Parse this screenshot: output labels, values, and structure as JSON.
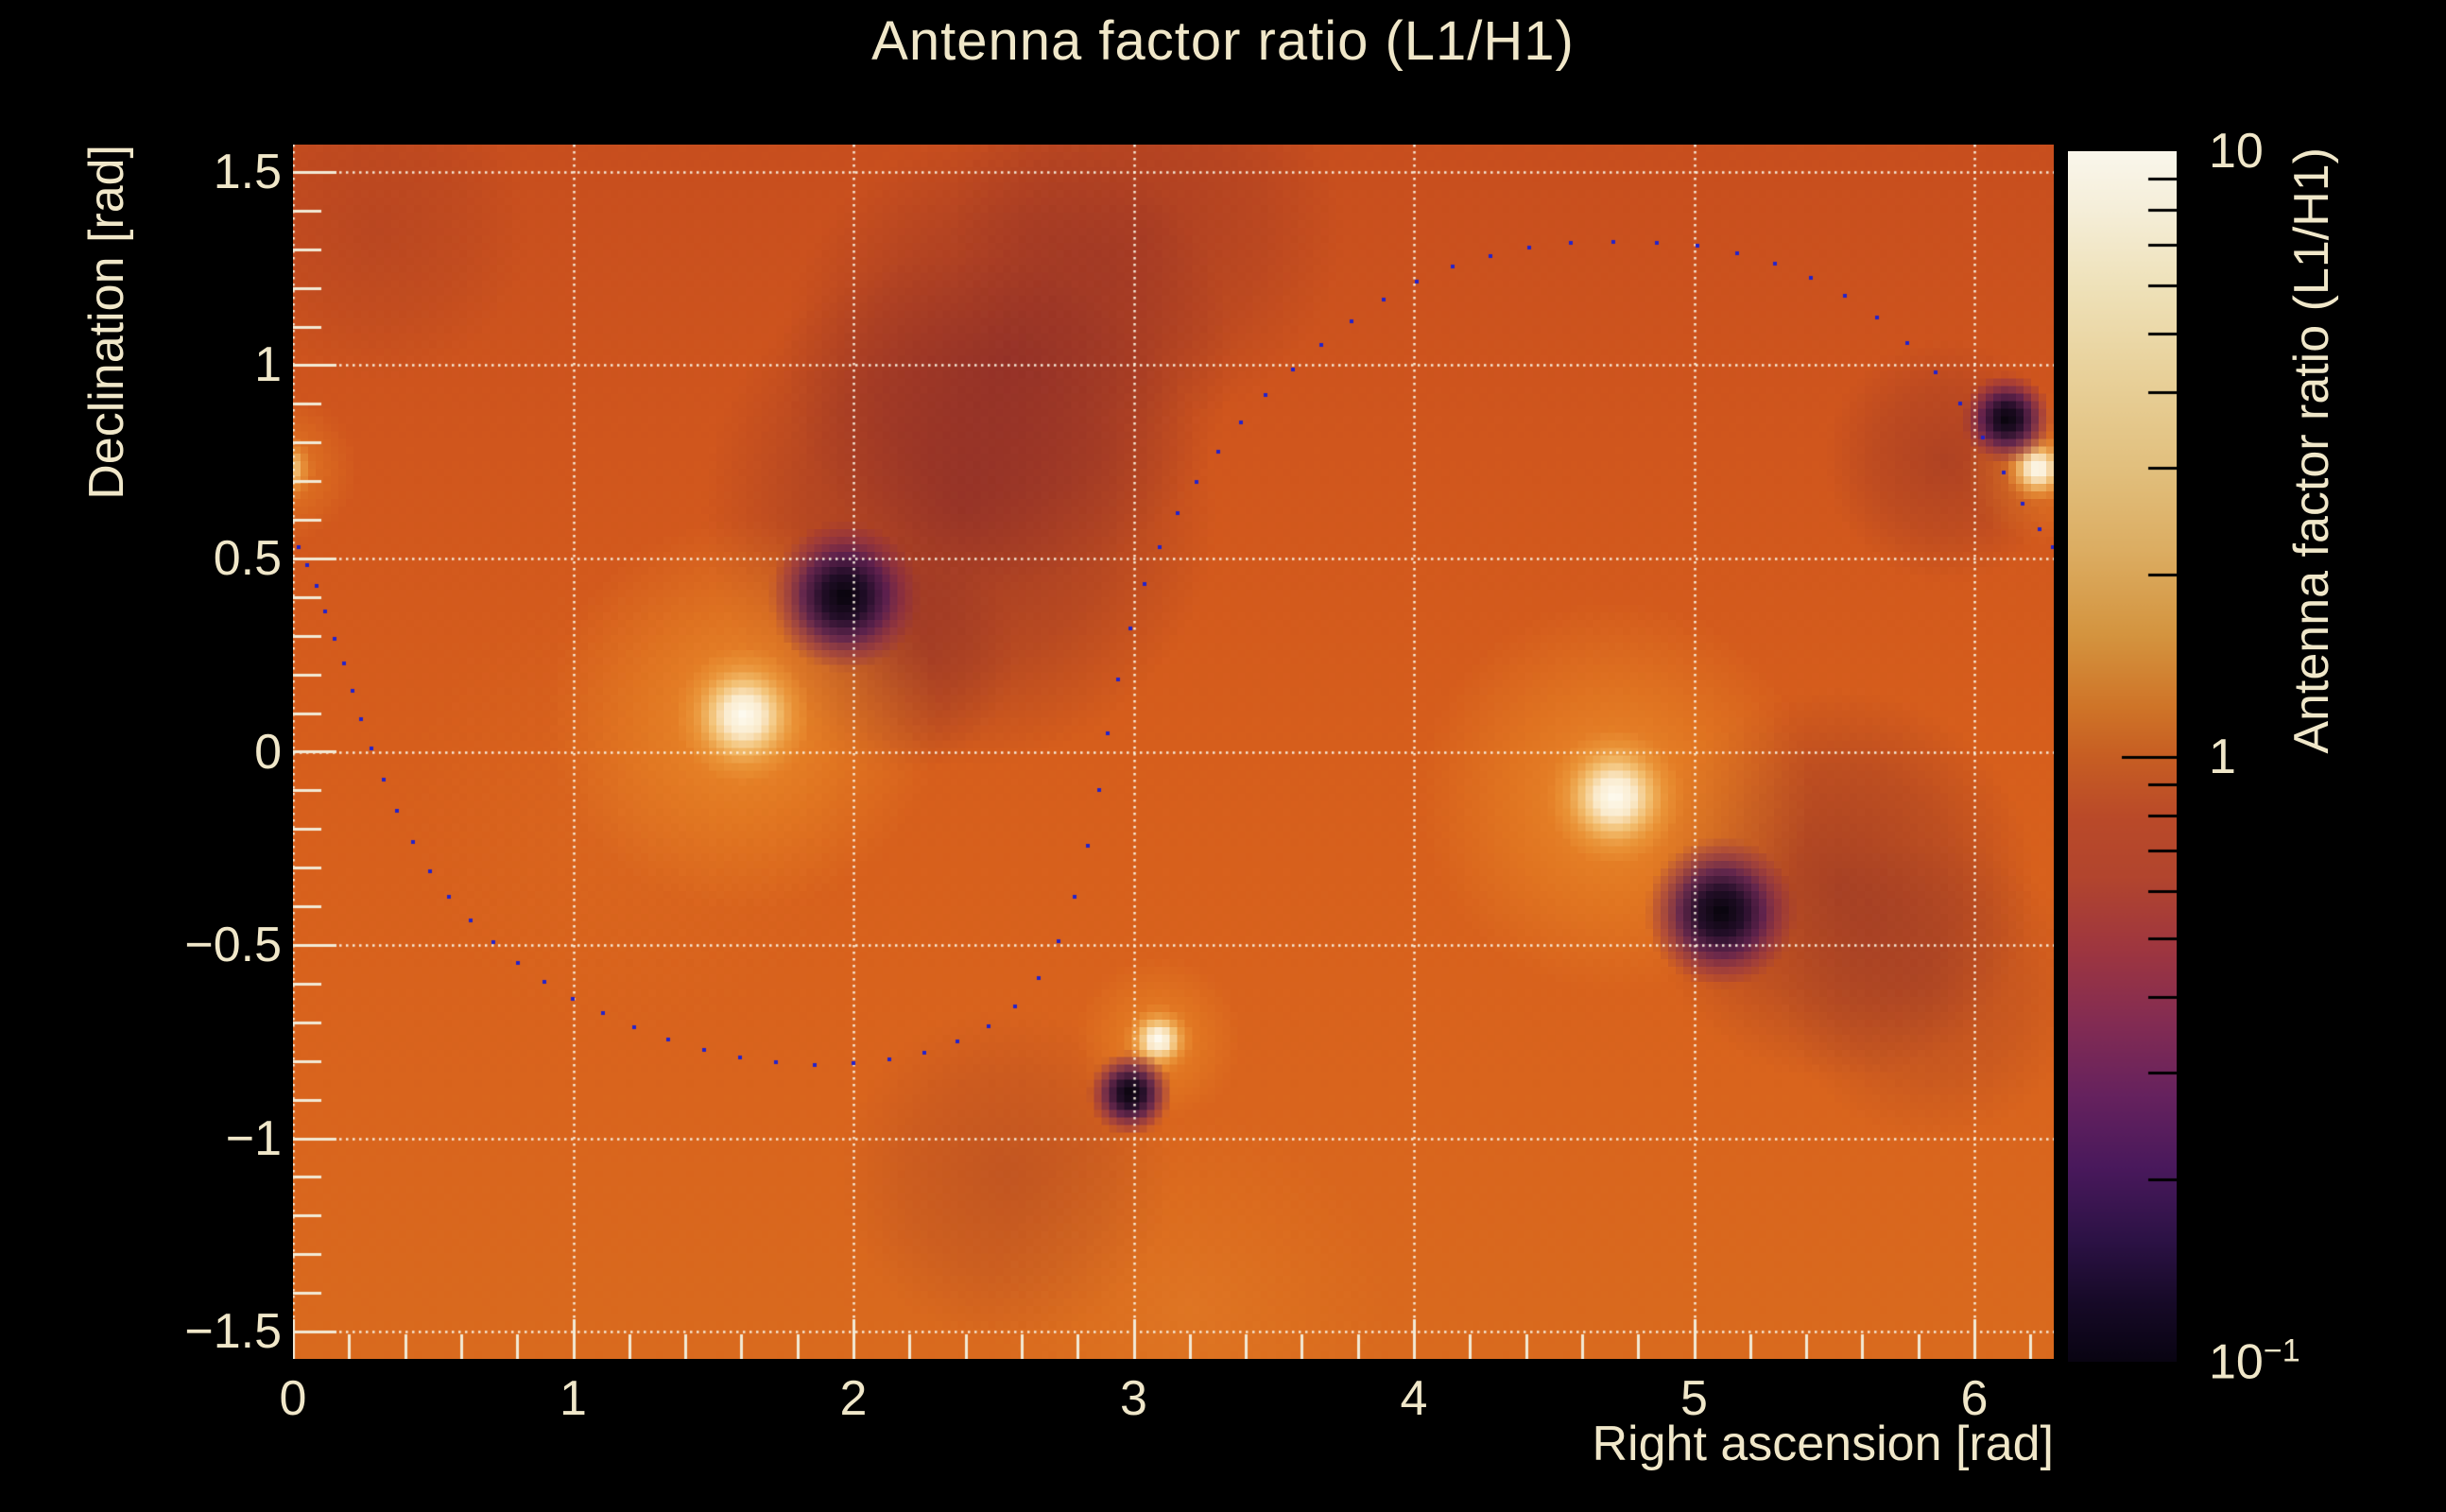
{
  "figure": {
    "title": "Antenna factor ratio (L1/H1)"
  },
  "axes": {
    "x": {
      "label": "Right ascension [rad]",
      "range": [
        0,
        6.2832
      ],
      "major_ticks": [
        {
          "v": 0,
          "label": "0"
        },
        {
          "v": 1,
          "label": "1"
        },
        {
          "v": 2,
          "label": "2"
        },
        {
          "v": 3,
          "label": "3"
        },
        {
          "v": 4,
          "label": "4"
        },
        {
          "v": 5,
          "label": "5"
        },
        {
          "v": 6,
          "label": "6"
        }
      ],
      "minor_step": 0.2,
      "grid": true
    },
    "y": {
      "label": "Declination [rad]",
      "range": [
        -1.5708,
        1.5708
      ],
      "major_ticks": [
        {
          "v": 1.5,
          "label": "1.5"
        },
        {
          "v": 1.0,
          "label": "1"
        },
        {
          "v": 0.5,
          "label": "0.5"
        },
        {
          "v": 0.0,
          "label": "0"
        },
        {
          "v": -0.5,
          "label": "−0.5"
        },
        {
          "v": -1.0,
          "label": "−1"
        },
        {
          "v": -1.5,
          "label": "−1.5"
        }
      ],
      "minor_step": 0.1,
      "grid": true
    }
  },
  "colorbar": {
    "label": "Antenna factor ratio (L1/H1)",
    "scale": "log",
    "range": [
      0.1,
      10
    ],
    "major_tick_labels": [
      {
        "v": 10,
        "base": "10",
        "sup": ""
      },
      {
        "v": 1,
        "base": "1",
        "sup": ""
      },
      {
        "v": 0.1,
        "base": "10",
        "sup": "−1"
      }
    ],
    "gradient_top_to_bottom": [
      [
        0.0,
        "#faf7ec"
      ],
      [
        0.05,
        "#f5eed8"
      ],
      [
        0.11,
        "#efe2ba"
      ],
      [
        0.18,
        "#e9d29c"
      ],
      [
        0.26,
        "#e2c07e"
      ],
      [
        0.33,
        "#dcad62"
      ],
      [
        0.4,
        "#d4943f"
      ],
      [
        0.46,
        "#cf7428"
      ],
      [
        0.5,
        "#c75e23"
      ],
      [
        0.55,
        "#ba4a29"
      ],
      [
        0.6,
        "#b2452e"
      ],
      [
        0.66,
        "#9e3640"
      ],
      [
        0.72,
        "#832c53"
      ],
      [
        0.78,
        "#66225e"
      ],
      [
        0.84,
        "#49195c"
      ],
      [
        0.9,
        "#2c1245"
      ],
      [
        0.95,
        "#170a28"
      ],
      [
        1.0,
        "#090412"
      ]
    ]
  },
  "colors": {
    "text": "#f0e7c9",
    "grid": "rgba(250,243,228,0.95)",
    "axis_tick": "#f2ead6",
    "track_marker": "#2222cc",
    "background": "#000000",
    "heat_base_gradient": [
      [
        0.0,
        "#c74e1e"
      ],
      [
        0.25,
        "#d0561d"
      ],
      [
        0.5,
        "#d65e1c"
      ],
      [
        0.78,
        "#d9641d"
      ],
      [
        1.0,
        "#d96a1e"
      ]
    ]
  },
  "chart_data": {
    "type": "heatmap",
    "title": "Antenna factor ratio (L1/H1)",
    "xlabel": "Right ascension [rad]",
    "ylabel": "Declination [rad]",
    "zlabel": "Antenna factor ratio (L1/H1)",
    "x_range": [
      0,
      6.2832
    ],
    "y_range": [
      -1.5708,
      1.5708
    ],
    "z_scale": "log",
    "z_range": [
      0.1,
      10
    ],
    "bin_size_px": 8,
    "peaks_ratio_high": [
      {
        "ra": 1.61,
        "dec": 0.09,
        "halo_r": 9.0
      },
      {
        "ra": 4.72,
        "dec": -0.12,
        "halo_r": 9.0
      },
      {
        "ra": 3.09,
        "dec": -0.75,
        "halo_r": 4.6
      },
      {
        "ra": 6.23,
        "dec": 0.73,
        "halo_r": 4.6
      },
      {
        "ra": -0.05,
        "dec": 0.73,
        "halo_r": 4.6
      }
    ],
    "nulls_ratio_low": [
      {
        "ra": 1.97,
        "dec": 0.4,
        "halo_r": 10.0
      },
      {
        "ra": 5.1,
        "dec": -0.42,
        "halo_r": 10.0
      },
      {
        "ra": 2.99,
        "dec": -0.89,
        "halo_r": 5.6
      },
      {
        "ra": 6.12,
        "dec": 0.86,
        "halo_r": 6.0
      },
      {
        "ra": -0.16,
        "dec": 0.86,
        "halo_r": 5.0
      }
    ],
    "dark_shading_zones": [
      {
        "ra": 2.38,
        "dec": 0.62,
        "r": 34,
        "a": 0.5
      },
      {
        "ra": 2.55,
        "dec": 1.02,
        "r": 30,
        "a": 0.45
      },
      {
        "ra": 3.05,
        "dec": 1.35,
        "r": 26,
        "a": 0.3
      },
      {
        "ra": 2.15,
        "dec": 0.25,
        "r": 16,
        "a": 0.3
      },
      {
        "ra": 5.52,
        "dec": -0.35,
        "r": 26,
        "a": 0.45
      },
      {
        "ra": 5.85,
        "dec": -0.62,
        "r": 20,
        "a": 0.25
      },
      {
        "ra": 5.9,
        "dec": 0.75,
        "r": 16,
        "a": 0.35
      },
      {
        "ra": 2.55,
        "dec": -1.1,
        "r": 22,
        "a": 0.22
      },
      {
        "ra": 0.3,
        "dec": 1.35,
        "r": 20,
        "a": 0.18
      }
    ],
    "glow_shading_zones": [
      {
        "ra": 1.61,
        "dec": 0.09,
        "r": 26,
        "a": 0.75
      },
      {
        "ra": 4.72,
        "dec": -0.12,
        "r": 26,
        "a": 0.75
      },
      {
        "ra": 3.09,
        "dec": -0.75,
        "r": 11,
        "a": 0.6
      },
      {
        "ra": 6.24,
        "dec": 0.73,
        "r": 10,
        "a": 0.55
      },
      {
        "ra": -0.04,
        "dec": 0.73,
        "r": 10,
        "a": 0.55
      },
      {
        "ra": 3.2,
        "dec": -1.45,
        "r": 26,
        "a": 0.22
      },
      {
        "ra": 1.2,
        "dec": -0.15,
        "r": 30,
        "a": 0.1
      }
    ],
    "sky_track": {
      "marker": "square",
      "marker_size_px": 4,
      "n_markers": 72,
      "points": [
        [
          0.02,
          0.53
        ],
        [
          0.06,
          0.47
        ],
        [
          0.1,
          0.4
        ],
        [
          0.14,
          0.31
        ],
        [
          0.18,
          0.23
        ],
        [
          0.22,
          0.14
        ],
        [
          0.26,
          0.05
        ],
        [
          0.31,
          -0.05
        ],
        [
          0.37,
          -0.15
        ],
        [
          0.44,
          -0.25
        ],
        [
          0.52,
          -0.34
        ],
        [
          0.61,
          -0.42
        ],
        [
          0.71,
          -0.49
        ],
        [
          0.82,
          -0.555
        ],
        [
          0.94,
          -0.615
        ],
        [
          1.07,
          -0.665
        ],
        [
          1.21,
          -0.71
        ],
        [
          1.36,
          -0.75
        ],
        [
          1.52,
          -0.78
        ],
        [
          1.68,
          -0.8
        ],
        [
          1.85,
          -0.81
        ],
        [
          2.02,
          -0.805
        ],
        [
          2.18,
          -0.79
        ],
        [
          2.33,
          -0.76
        ],
        [
          2.47,
          -0.715
        ],
        [
          2.59,
          -0.65
        ],
        [
          2.69,
          -0.55
        ],
        [
          2.77,
          -0.42
        ],
        [
          2.83,
          -0.26
        ],
        [
          2.88,
          -0.08
        ],
        [
          2.92,
          0.1
        ],
        [
          2.97,
          0.27
        ],
        [
          3.03,
          0.42
        ],
        [
          3.1,
          0.54
        ],
        [
          3.18,
          0.645
        ],
        [
          3.27,
          0.745
        ],
        [
          3.37,
          0.84
        ],
        [
          3.48,
          0.93
        ],
        [
          3.6,
          1.01
        ],
        [
          3.73,
          1.09
        ],
        [
          3.87,
          1.16
        ],
        [
          4.02,
          1.22
        ],
        [
          4.18,
          1.265
        ],
        [
          4.35,
          1.295
        ],
        [
          4.53,
          1.315
        ],
        [
          4.72,
          1.32
        ],
        [
          4.91,
          1.315
        ],
        [
          5.09,
          1.3
        ],
        [
          5.26,
          1.27
        ],
        [
          5.42,
          1.225
        ],
        [
          5.57,
          1.165
        ],
        [
          5.71,
          1.09
        ],
        [
          5.84,
          1.0
        ],
        [
          5.95,
          0.9
        ],
        [
          6.05,
          0.79
        ],
        [
          6.14,
          0.68
        ],
        [
          6.22,
          0.59
        ],
        [
          6.28,
          0.53
        ]
      ]
    }
  }
}
